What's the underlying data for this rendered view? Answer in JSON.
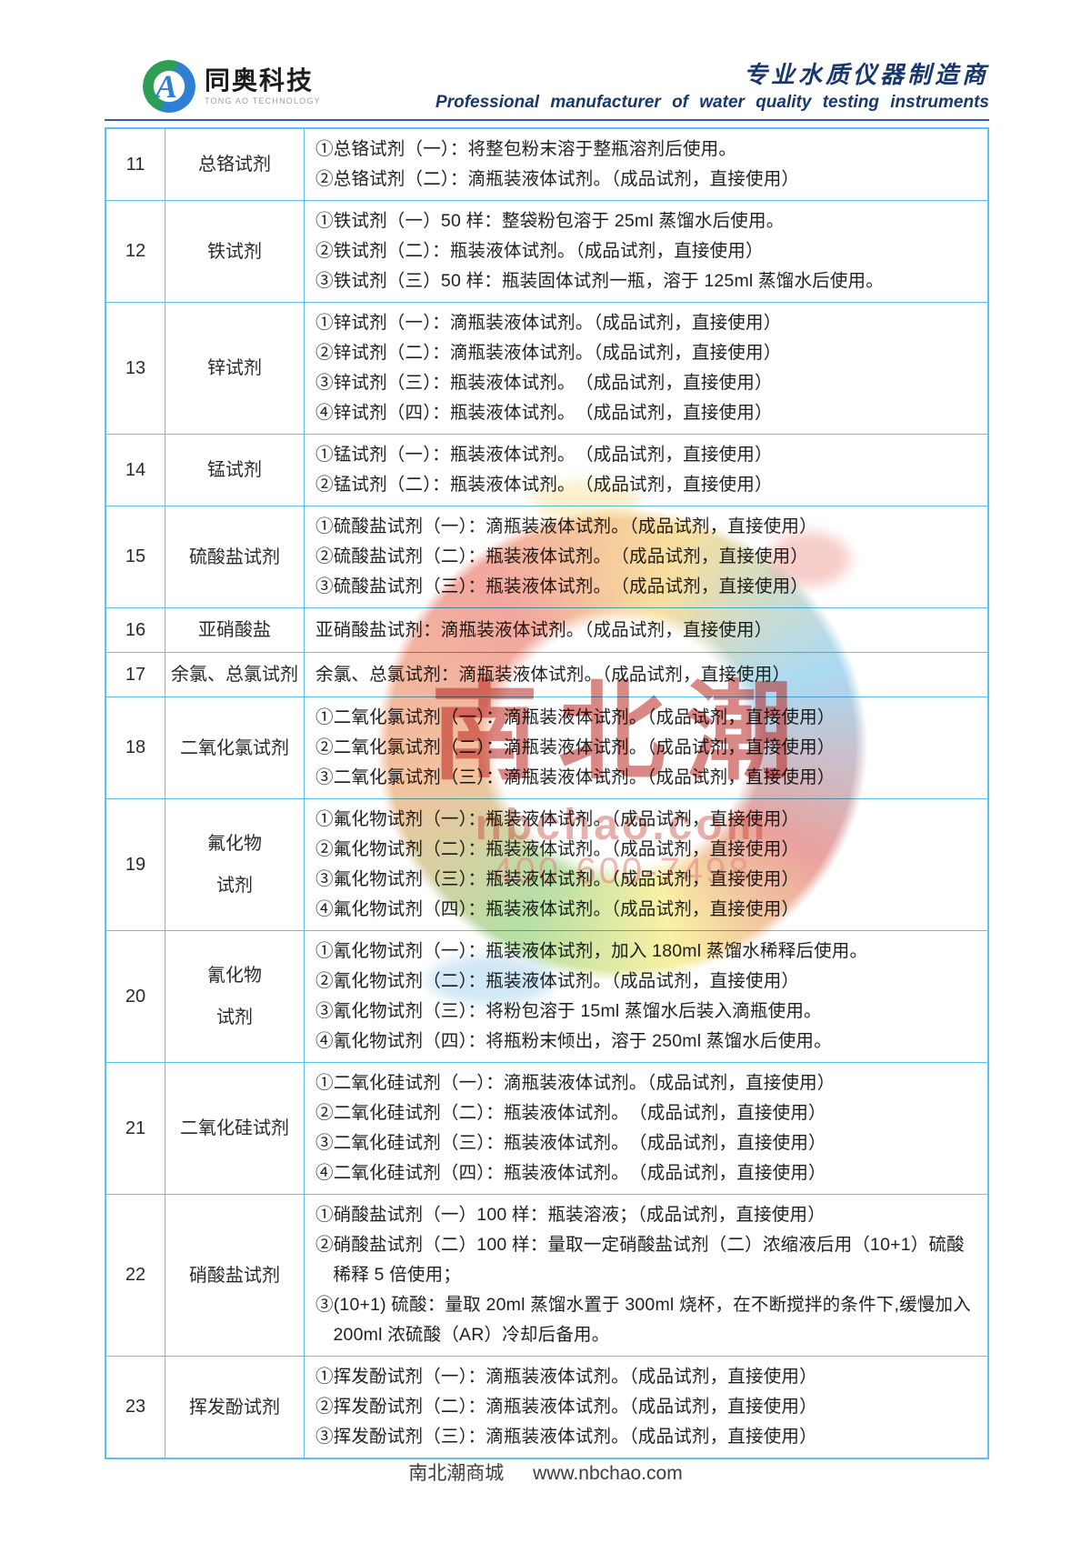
{
  "header": {
    "brand_cn": "同奥科技",
    "brand_en": "TONG AO TECHNOLOGY",
    "logo_letter": "A",
    "tagline_cn": "专业水质仪器制造商",
    "tagline_en": "Professional manufacturer of water quality testing instruments"
  },
  "table": {
    "rows": [
      {
        "num": "11",
        "name": "总铬试剂",
        "lines": [
          "①总铬试剂（一）：将整包粉末溶于整瓶溶剂后使用。",
          "②总铬试剂（二）：滴瓶装液体试剂。（成品试剂，直接使用）"
        ]
      },
      {
        "num": "12",
        "name": "铁试剂",
        "lines": [
          "①铁试剂（一）50 样：整袋粉包溶于 25ml 蒸馏水后使用。",
          "②铁试剂（二）：瓶装液体试剂。（成品试剂，直接使用）",
          "③铁试剂（三）50 样：瓶装固体试剂一瓶，溶于 125ml 蒸馏水后使用。"
        ]
      },
      {
        "num": "13",
        "name": "锌试剂",
        "lines": [
          "①锌试剂（一）：滴瓶装液体试剂。（成品试剂，直接使用）",
          "②锌试剂（二）：滴瓶装液体试剂。（成品试剂，直接使用）",
          "③锌试剂（三）：瓶装液体试剂。　（成品试剂，直接使用）",
          "④锌试剂（四）：瓶装液体试剂。　（成品试剂，直接使用）"
        ]
      },
      {
        "num": "14",
        "name": "锰试剂",
        "lines": [
          "①锰试剂（一）：瓶装液体试剂。　（成品试剂，直接使用）",
          "②锰试剂（二）：瓶装液体试剂。　（成品试剂，直接使用）"
        ]
      },
      {
        "num": "15",
        "name": "硫酸盐试剂",
        "lines": [
          "①硫酸盐试剂（一）：滴瓶装液体试剂。（成品试剂，直接使用）",
          "②硫酸盐试剂（二）：瓶装液体试剂。　（成品试剂，直接使用）",
          "③硫酸盐试剂（三）：瓶装液体试剂。　（成品试剂，直接使用）"
        ]
      },
      {
        "num": "16",
        "name": "亚硝酸盐",
        "lines": [
          "亚硝酸盐试剂：滴瓶装液体试剂。（成品试剂，直接使用）"
        ]
      },
      {
        "num": "17",
        "name": "余氯、总氯试剂",
        "lines": [
          "余氯、总氯试剂：滴瓶装液体试剂。（成品试剂，直接使用）"
        ]
      },
      {
        "num": "18",
        "name": "二氧化氯试剂",
        "lines": [
          "①二氧化氯试剂（一）：滴瓶装液体试剂。（成品试剂，直接使用）",
          "②二氧化氯试剂（二）：滴瓶装液体试剂。（成品试剂，直接使用）",
          "③二氧化氯试剂（三）：滴瓶装液体试剂。（成品试剂，直接使用）"
        ]
      },
      {
        "num": "19",
        "name": "氟化物\n试剂",
        "lines": [
          "①氟化物试剂（一）：瓶装液体试剂。（成品试剂，直接使用）",
          "②氟化物试剂（二）：瓶装液体试剂。（成品试剂，直接使用）",
          "③氟化物试剂（三）：瓶装液体试剂。（成品试剂，直接使用）",
          "④氟化物试剂（四）：瓶装液体试剂。（成品试剂，直接使用）"
        ]
      },
      {
        "num": "20",
        "name": "氰化物\n试剂",
        "lines": [
          "①氰化物试剂（一）：瓶装液体试剂，加入 180ml 蒸馏水稀释后使用。",
          "②氰化物试剂（二）：瓶装液体试剂。（成品试剂，直接使用）",
          "③氰化物试剂（三）：将粉包溶于 15ml 蒸馏水后装入滴瓶使用。",
          "④氰化物试剂（四）：将瓶粉末倾出，溶于 250ml 蒸馏水后使用。"
        ]
      },
      {
        "num": "21",
        "name": "二氧化硅试剂",
        "lines": [
          "①二氧化硅试剂（一）：滴瓶装液体试剂。（成品试剂，直接使用）",
          "②二氧化硅试剂（二）：瓶装液体试剂。　（成品试剂，直接使用）",
          "③二氧化硅试剂（三）：瓶装液体试剂。　（成品试剂，直接使用）",
          "④二氧化硅试剂（四）：瓶装液体试剂。　（成品试剂，直接使用）"
        ]
      },
      {
        "num": "22",
        "name": "硝酸盐试剂",
        "lines": [
          "①硝酸盐试剂（一）100 样：瓶装溶液；（成品试剂，直接使用）",
          "②硝酸盐试剂（二）100 样：量取一定硝酸盐试剂（二）浓缩液后用（10+1）硫酸稀释 5 倍使用；",
          "③(10+1) 硫酸：量取 20ml 蒸馏水置于 300ml 烧杯，在不断搅拌的条件下,缓慢加入 200ml 浓硫酸（AR）冷却后备用。"
        ]
      },
      {
        "num": "23",
        "name": "挥发酚试剂",
        "lines": [
          "①挥发酚试剂（一）：滴瓶装液体试剂。（成品试剂，直接使用）",
          "②挥发酚试剂（二）：滴瓶装液体试剂。（成品试剂，直接使用）",
          "③挥发酚试剂（三）：滴瓶装液体试剂。（成品试剂，直接使用）"
        ]
      }
    ]
  },
  "watermark": {
    "brand_chars": "南北潮",
    "url": "nbchao.com",
    "phone": "400-600-7498"
  },
  "footer": {
    "site_name": "南北潮商城",
    "site_url": "www.nbchao.com"
  },
  "colors": {
    "table_border": "#56c4ef",
    "header_rule": "#2e5fa3",
    "tagline_navy": "#17376e",
    "logo_green": "#2e9e53",
    "logo_blue": "#2f7fd6",
    "watermark_red": "#ba2620"
  }
}
